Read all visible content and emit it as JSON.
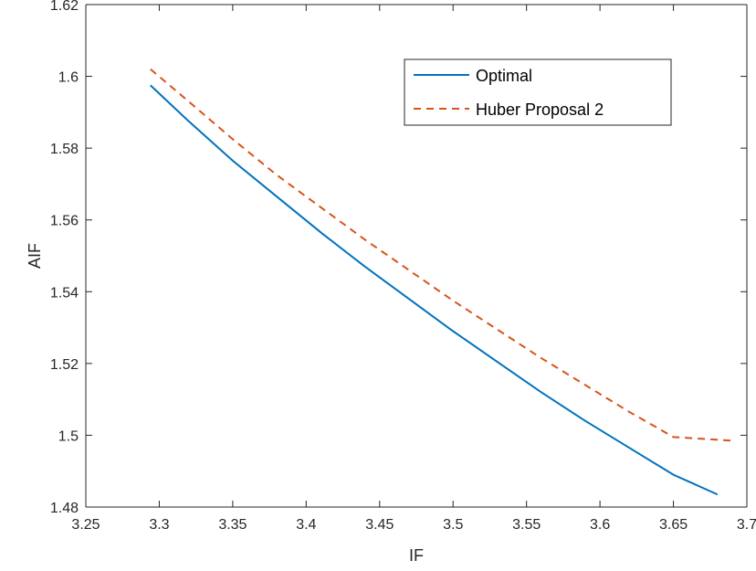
{
  "chart_data": {
    "type": "line",
    "title": "",
    "xlabel": "IF",
    "ylabel": "AIF",
    "xlim": [
      3.25,
      3.7
    ],
    "ylim": [
      1.48,
      1.62
    ],
    "xticks": [
      3.25,
      3.3,
      3.35,
      3.4,
      3.45,
      3.5,
      3.55,
      3.6,
      3.65,
      3.7
    ],
    "xtick_labels": [
      "3.25",
      "3.3",
      "3.35",
      "3.4",
      "3.45",
      "3.5",
      "3.55",
      "3.6",
      "3.65",
      "3.7"
    ],
    "yticks": [
      1.48,
      1.5,
      1.52,
      1.54,
      1.56,
      1.58,
      1.6,
      1.62
    ],
    "ytick_labels": [
      "1.48",
      "1.5",
      "1.52",
      "1.54",
      "1.56",
      "1.58",
      "1.6",
      "1.62"
    ],
    "grid": false,
    "legend_position": "top-right",
    "series": [
      {
        "name": "Optimal",
        "color": "#0072BD",
        "style": "solid",
        "x": [
          3.294,
          3.32,
          3.35,
          3.38,
          3.41,
          3.44,
          3.47,
          3.5,
          3.53,
          3.56,
          3.59,
          3.62,
          3.65,
          3.68
        ],
        "y": [
          1.5975,
          1.5875,
          1.5765,
          1.5665,
          1.5565,
          1.547,
          1.538,
          1.529,
          1.5205,
          1.512,
          1.504,
          1.4965,
          1.489,
          1.4835
        ]
      },
      {
        "name": "Huber Proposal 2",
        "color": "#D95319",
        "style": "dashed",
        "x": [
          3.294,
          3.32,
          3.35,
          3.38,
          3.41,
          3.44,
          3.47,
          3.5,
          3.53,
          3.56,
          3.59,
          3.62,
          3.65,
          3.69
        ],
        "y": [
          1.602,
          1.593,
          1.5825,
          1.5725,
          1.5635,
          1.5545,
          1.546,
          1.5375,
          1.5295,
          1.5215,
          1.514,
          1.5065,
          1.4995,
          1.4985
        ]
      }
    ]
  }
}
